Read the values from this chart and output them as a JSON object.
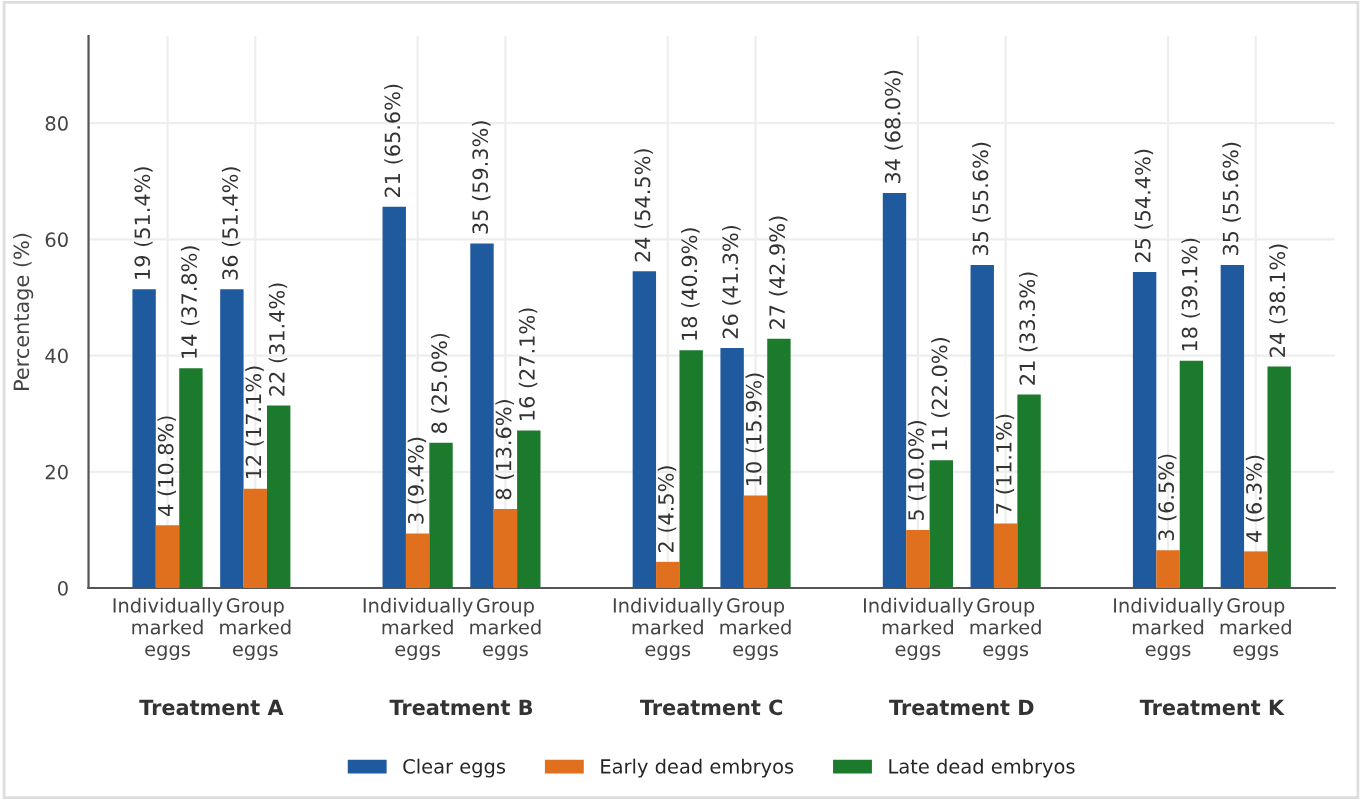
{
  "chart_data": {
    "type": "bar",
    "ylabel": "Percentage (%)",
    "categories": [
      "Individually\nmarked\neggs",
      "Group\nmarked\neggs",
      "Individually\nmarked\neggs",
      "Group\nmarked\neggs",
      "Individually\nmarked\neggs",
      "Group\nmarked\neggs",
      "Individually\nmarked\neggs",
      "Group\nmarked\neggs",
      "Individually\nmarked\neggs",
      "Group\nmarked\neggs"
    ],
    "series": [
      {
        "name": "Clear eggs",
        "color": "#1f5a9e",
        "values": [
          51.4,
          51.4,
          65.6,
          59.3,
          54.5,
          41.3,
          68.0,
          55.6,
          54.4,
          55.6
        ],
        "value_labels": [
          "19 (51.4%)",
          "36 (51.4%)",
          "21 (65.6%)",
          "35 (59.3%)",
          "24 (54.5%)",
          "26 (41.3%)",
          "34 (68.0%)",
          "35 (55.6%)",
          "25 (54.4%)",
          "35 (55.6%)"
        ]
      },
      {
        "name": "Early dead embryos",
        "color": "#e0701e",
        "values": [
          10.8,
          17.1,
          9.4,
          13.6,
          4.5,
          15.9,
          10.0,
          11.1,
          6.5,
          6.3
        ],
        "value_labels": [
          "4 (10.8%)",
          "12 (17.1%)",
          "3 (9.4%)",
          "8 (13.6%)",
          "2 (4.5%)",
          "10 (15.9%)",
          "5 (10.0%)",
          "7 (11.1%)",
          "3 (6.5%)",
          "4 (6.3%)"
        ]
      },
      {
        "name": "Late dead embryos",
        "color": "#1c7a2c",
        "values": [
          37.8,
          31.4,
          25.0,
          27.1,
          40.9,
          42.9,
          22.0,
          33.3,
          39.1,
          38.1
        ],
        "value_labels": [
          "14 (37.8%)",
          "22 (31.4%)",
          "8 (25.0%)",
          "16 (27.1%)",
          "18 (40.9%)",
          "27 (42.9%)",
          "11 (22.0%)",
          "21 (33.3%)",
          "18 (39.1%)",
          "24 (38.1%)"
        ]
      }
    ],
    "ylim": [
      0,
      95
    ],
    "yticks": [
      0,
      20,
      40,
      60,
      80
    ],
    "grid": true,
    "legend": "bottom",
    "annotations": [
      "Treatment A",
      "Treatment B",
      "Treatment C",
      "Treatment D",
      "Treatment K"
    ]
  }
}
